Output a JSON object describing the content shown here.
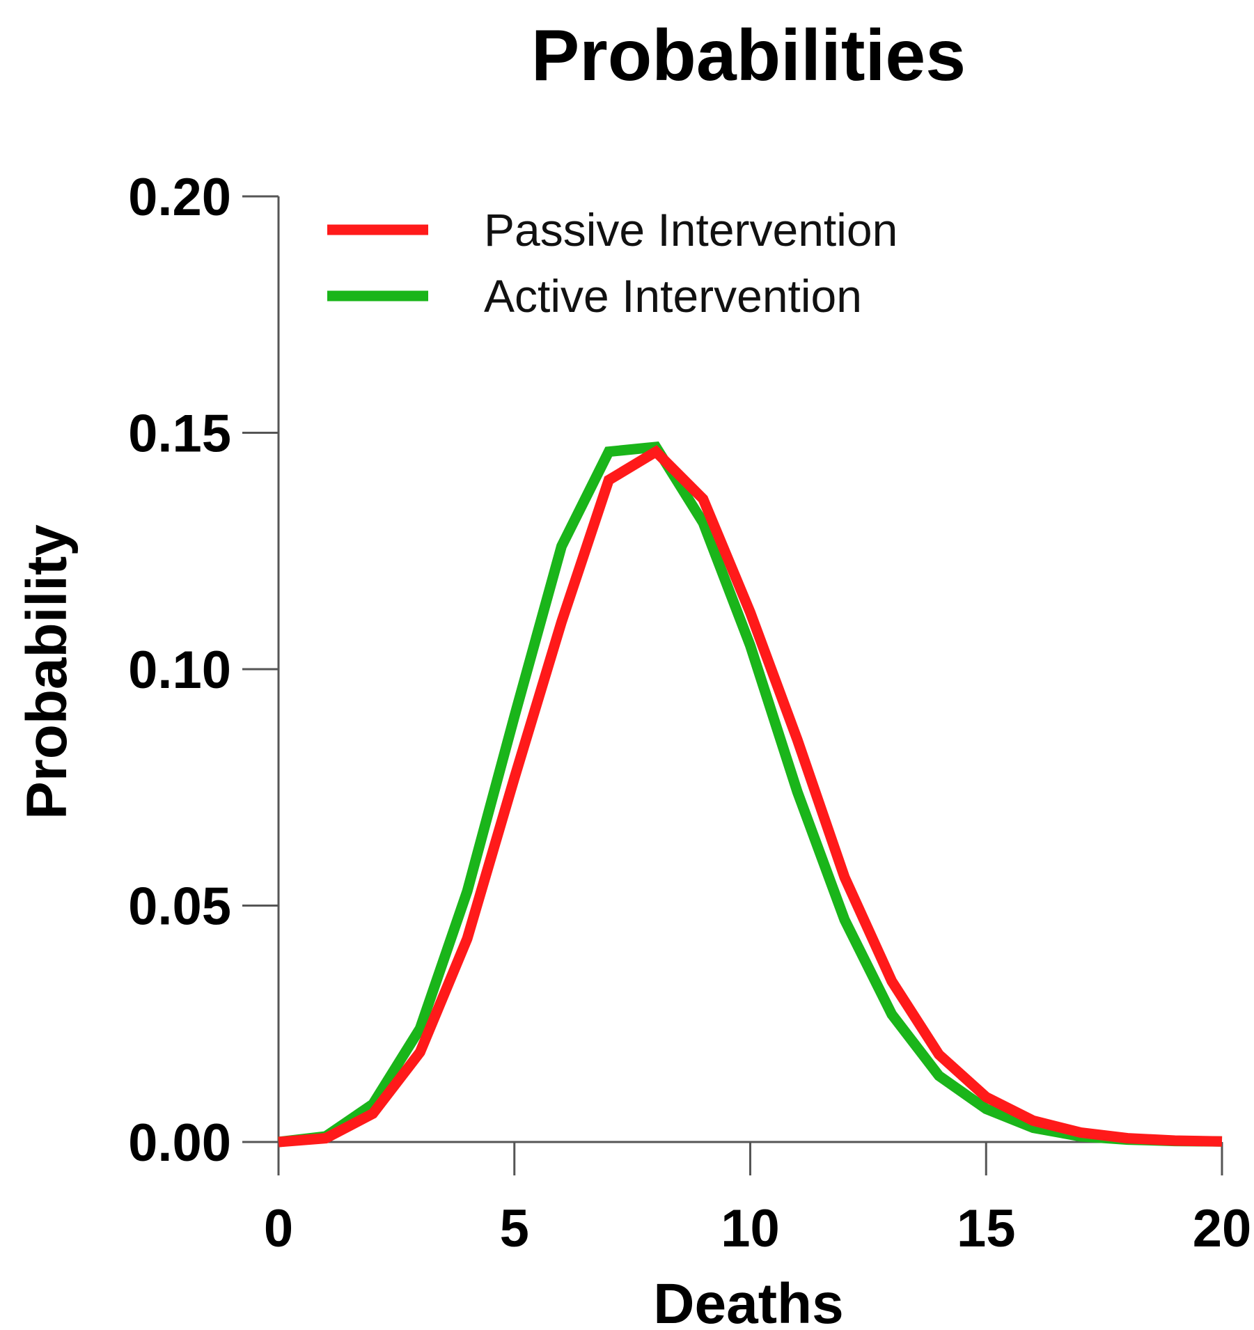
{
  "chart_data": {
    "type": "line",
    "title": "Probabilities",
    "xlabel": "Deaths",
    "ylabel": "Probability",
    "xlim": [
      0,
      20
    ],
    "ylim": [
      0,
      0.2
    ],
    "xticks": [
      0,
      5,
      10,
      15,
      20
    ],
    "xtick_labels": [
      "0",
      "5",
      "10",
      "15",
      "20"
    ],
    "yticks": [
      0,
      0.05,
      0.1,
      0.15,
      0.2
    ],
    "ytick_labels": [
      "0.00",
      "0.05",
      "0.10",
      "0.15",
      "0.20"
    ],
    "legend_position": "top-left",
    "x": [
      0,
      1,
      2,
      3,
      4,
      5,
      6,
      7,
      8,
      9,
      10,
      11,
      12,
      13,
      14,
      15,
      16,
      17,
      18,
      19,
      20
    ],
    "series": [
      {
        "name": "Passive Intervention",
        "color": "#ff1a1a",
        "values": [
          0.0,
          0.0008,
          0.006,
          0.019,
          0.043,
          0.077,
          0.11,
          0.14,
          0.146,
          0.136,
          0.112,
          0.085,
          0.056,
          0.034,
          0.0185,
          0.0095,
          0.0045,
          0.002,
          0.0008,
          0.0003,
          0.0001
        ]
      },
      {
        "name": "Active Intervention",
        "color": "#1ab51a",
        "values": [
          0.0,
          0.0012,
          0.008,
          0.024,
          0.053,
          0.09,
          0.126,
          0.146,
          0.147,
          0.131,
          0.105,
          0.074,
          0.047,
          0.027,
          0.014,
          0.007,
          0.003,
          0.0012,
          0.0005,
          0.0002,
          0.0001
        ]
      }
    ]
  }
}
